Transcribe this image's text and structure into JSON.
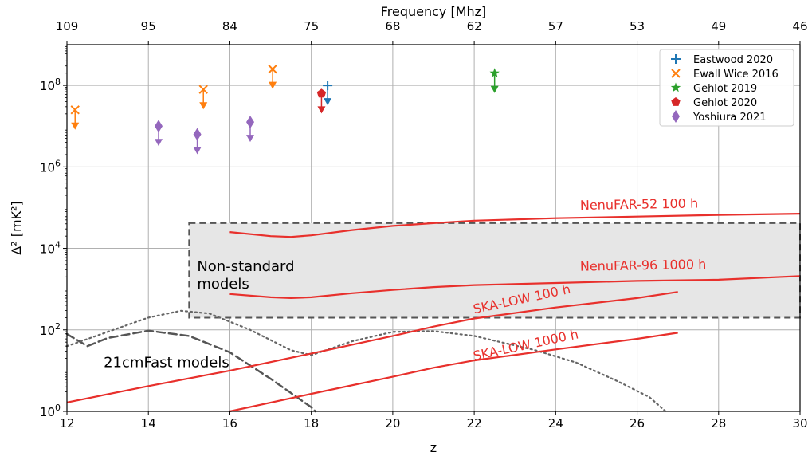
{
  "chart_data": {
    "type": "scatter",
    "xlabel": "z",
    "ylabel": "Δ² [mK²]",
    "top_xlabel": "Frequency [Mhz]",
    "xlim": [
      12,
      30
    ],
    "ylim_log10": [
      0,
      9
    ],
    "y_scale": "log",
    "grid": true,
    "legend_position": "top-right",
    "x_ticks": [
      12,
      14,
      16,
      18,
      20,
      22,
      24,
      26,
      28,
      30
    ],
    "x_tick_labels": [
      "12",
      "14",
      "16",
      "18",
      "20",
      "22",
      "24",
      "26",
      "28",
      "30"
    ],
    "y_ticks_log10": [
      0,
      2,
      4,
      6,
      8
    ],
    "y_tick_labels": [
      "10^0",
      "10^2",
      "10^4",
      "10^6",
      "10^8"
    ],
    "top_ticks": [
      {
        "z": 12,
        "label": "109"
      },
      {
        "z": 14,
        "label": "95"
      },
      {
        "z": 16,
        "label": "84"
      },
      {
        "z": 18,
        "label": "75"
      },
      {
        "z": 20,
        "label": "68"
      },
      {
        "z": 22,
        "label": "62"
      },
      {
        "z": 24,
        "label": "57"
      },
      {
        "z": 26,
        "label": "53"
      },
      {
        "z": 28,
        "label": "49"
      },
      {
        "z": 30,
        "label": "46"
      }
    ],
    "limits": [
      {
        "name": "Eastwood 2020",
        "color": "#1f77b4",
        "marker": "plus",
        "points": [
          [
            18.4,
            8.0
          ]
        ]
      },
      {
        "name": "Ewall Wice 2016",
        "color": "#ff7f0e",
        "marker": "x",
        "points": [
          [
            12.2,
            7.4
          ],
          [
            15.35,
            7.9
          ],
          [
            17.05,
            8.4
          ]
        ]
      },
      {
        "name": "Gehlot 2019",
        "color": "#2ca02c",
        "marker": "star",
        "points": [
          [
            22.5,
            8.3
          ]
        ]
      },
      {
        "name": "Gehlot 2020",
        "color": "#d62728",
        "marker": "pentagon",
        "points": [
          [
            18.25,
            7.8
          ]
        ]
      },
      {
        "name": "Yoshiura 2021",
        "color": "#9467bd",
        "marker": "diamond",
        "points": [
          [
            14.25,
            7.0
          ],
          [
            15.2,
            6.8
          ],
          [
            16.5,
            7.1
          ]
        ]
      }
    ],
    "sensitivity_curves": [
      {
        "name": "NenuFAR-52 100 h",
        "color": "#e8302c",
        "label_at": [
          24.6,
          4.95
        ],
        "label_rot": -1,
        "points": [
          [
            16.0,
            4.4
          ],
          [
            17.0,
            4.3
          ],
          [
            17.5,
            4.28
          ],
          [
            18.0,
            4.32
          ],
          [
            19.0,
            4.45
          ],
          [
            20.0,
            4.55
          ],
          [
            21.0,
            4.62
          ],
          [
            22.0,
            4.68
          ],
          [
            24.0,
            4.74
          ],
          [
            26.0,
            4.78
          ],
          [
            28.0,
            4.82
          ],
          [
            30.0,
            4.85
          ]
        ]
      },
      {
        "name": "NenuFAR-96 1000 h",
        "color": "#e8302c",
        "label_at": [
          24.6,
          3.45
        ],
        "label_rot": -1,
        "points": [
          [
            16.0,
            2.88
          ],
          [
            17.0,
            2.8
          ],
          [
            17.5,
            2.78
          ],
          [
            18.0,
            2.8
          ],
          [
            19.0,
            2.9
          ],
          [
            20.0,
            2.98
          ],
          [
            21.0,
            3.05
          ],
          [
            22.0,
            3.1
          ],
          [
            24.0,
            3.15
          ],
          [
            26.0,
            3.2
          ],
          [
            28.0,
            3.23
          ],
          [
            30.0,
            3.32
          ]
        ]
      },
      {
        "name": "SKA-LOW 100 h",
        "color": "#e8302c",
        "label_at": [
          22.0,
          2.4
        ],
        "label_rot": -12,
        "points": [
          [
            12.0,
            0.22
          ],
          [
            14.0,
            0.62
          ],
          [
            16.0,
            1.0
          ],
          [
            18.0,
            1.42
          ],
          [
            20.0,
            1.85
          ],
          [
            21.0,
            2.08
          ],
          [
            22.0,
            2.28
          ],
          [
            24.0,
            2.55
          ],
          [
            26.0,
            2.78
          ],
          [
            27.0,
            2.93
          ]
        ]
      },
      {
        "name": "SKA-LOW 1000 h",
        "color": "#e8302c",
        "label_at": [
          22.0,
          1.25
        ],
        "label_rot": -12,
        "points": [
          [
            16.0,
            0.0
          ],
          [
            18.0,
            0.43
          ],
          [
            20.0,
            0.85
          ],
          [
            21.0,
            1.07
          ],
          [
            22.0,
            1.25
          ],
          [
            24.0,
            1.52
          ],
          [
            26.0,
            1.78
          ],
          [
            27.0,
            1.93
          ]
        ]
      }
    ],
    "model_curves": [
      {
        "name": "21cmFast dashed",
        "style": "dashed",
        "color": "#555555",
        "points": [
          [
            12.0,
            1.9
          ],
          [
            12.5,
            1.6
          ],
          [
            13.0,
            1.8
          ],
          [
            14.0,
            1.98
          ],
          [
            15.0,
            1.85
          ],
          [
            16.0,
            1.45
          ],
          [
            17.0,
            0.8
          ],
          [
            18.0,
            0.1
          ],
          [
            18.1,
            0.0
          ]
        ]
      },
      {
        "name": "21cmFast dotted",
        "style": "dotted",
        "color": "#666666",
        "points": [
          [
            12.0,
            1.6
          ],
          [
            13.0,
            1.95
          ],
          [
            14.0,
            2.3
          ],
          [
            14.8,
            2.47
          ],
          [
            15.5,
            2.4
          ],
          [
            16.5,
            2.0
          ],
          [
            17.5,
            1.5
          ],
          [
            18.0,
            1.38
          ],
          [
            19.0,
            1.72
          ],
          [
            20.0,
            1.95
          ],
          [
            21.0,
            1.97
          ],
          [
            22.0,
            1.85
          ],
          [
            23.5,
            1.5
          ],
          [
            24.5,
            1.2
          ],
          [
            25.5,
            0.75
          ],
          [
            26.3,
            0.35
          ],
          [
            26.7,
            0.0
          ]
        ]
      }
    ],
    "region": {
      "label": [
        "Non-standard",
        "models"
      ],
      "x": [
        15.0,
        30.0
      ],
      "y_log10": [
        2.3,
        4.62
      ]
    },
    "annotation": {
      "text": "21cmFast models",
      "at": [
        13.0,
        1.2
      ]
    }
  }
}
